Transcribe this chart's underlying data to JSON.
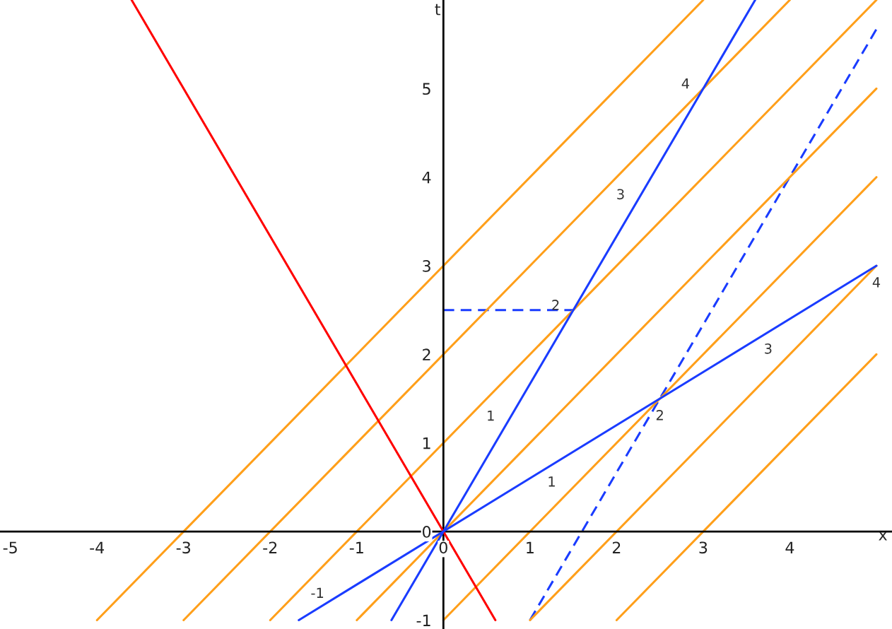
{
  "chart_data": {
    "type": "line",
    "xlabel": "x",
    "ylabel": "t",
    "xlim": [
      -5.12,
      5.18
    ],
    "ylim": [
      -1.1,
      6.0
    ],
    "xticks": [
      -5,
      -4,
      -3,
      -2,
      -1,
      0,
      1,
      2,
      3,
      4
    ],
    "yticks": [
      -1,
      0,
      1,
      2,
      3,
      4,
      5
    ],
    "grid": false,
    "marker": "none",
    "series": [
      {
        "color": "#ff0000",
        "x": [
          -3.6,
          0.6
        ],
        "values": [
          6,
          -1
        ],
        "line_style": "solid"
      },
      {
        "color": "#1a3cff",
        "x": [
          -0.6,
          3.6
        ],
        "values": [
          -1,
          6
        ],
        "line_style": "solid"
      },
      {
        "color": "#1a3cff",
        "x": [
          -1.67,
          5
        ],
        "values": [
          -1,
          3
        ],
        "line_style": "solid"
      },
      {
        "color": "#1a3cff",
        "x": [
          1,
          5
        ],
        "values": [
          -1,
          5.67
        ],
        "line_style": "dashed"
      },
      {
        "color": "#1a3cff",
        "x": [
          0,
          1.5
        ],
        "values": [
          2.5,
          2.5
        ],
        "line_style": "dashed"
      },
      {
        "color": "#ff9f1a",
        "x": [
          -4,
          3
        ],
        "values": [
          -1,
          6
        ],
        "line_style": "solid"
      },
      {
        "color": "#ff9f1a",
        "x": [
          -3,
          4
        ],
        "values": [
          -1,
          6
        ],
        "line_style": "solid"
      },
      {
        "color": "#ff9f1a",
        "x": [
          -2,
          5
        ],
        "values": [
          -1,
          6
        ],
        "line_style": "solid"
      },
      {
        "color": "#ff9f1a",
        "x": [
          -1,
          5
        ],
        "values": [
          -1,
          5
        ],
        "line_style": "solid"
      },
      {
        "color": "#ff9f1a",
        "x": [
          0,
          5
        ],
        "values": [
          -1,
          4
        ],
        "line_style": "solid"
      },
      {
        "color": "#ff9f1a",
        "x": [
          1,
          5
        ],
        "values": [
          -1,
          3
        ],
        "line_style": "solid"
      },
      {
        "color": "#ff9f1a",
        "x": [
          2,
          5
        ],
        "values": [
          -1,
          2
        ],
        "line_style": "solid"
      }
    ],
    "annotations": [
      {
        "text": "1",
        "x": 0.75,
        "y": 1.25
      },
      {
        "text": "2",
        "x": 1.5,
        "y": 2.5
      },
      {
        "text": "3",
        "x": 2.25,
        "y": 3.75
      },
      {
        "text": "4",
        "x": 3,
        "y": 5
      },
      {
        "text": "-1",
        "x": -1.25,
        "y": -0.75
      },
      {
        "text": "1",
        "x": 1.25,
        "y": 0.75
      },
      {
        "text": "2",
        "x": 2.5,
        "y": 1.5
      },
      {
        "text": "3",
        "x": 3.75,
        "y": 2.25
      },
      {
        "text": "4",
        "x": 5,
        "y": 3
      }
    ]
  }
}
